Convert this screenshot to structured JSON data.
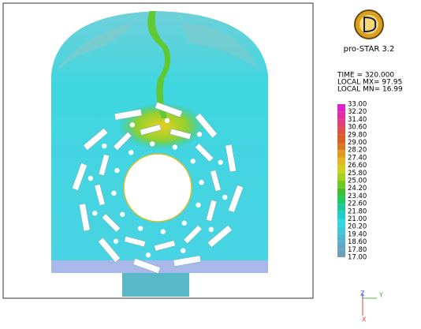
{
  "logo": {
    "title": "pro-STAR 3.2"
  },
  "info": [
    "TIME = 320.000",
    "LOCAL MX= 97.95",
    "LOCAL MN= 16.99"
  ],
  "colorbar": {
    "labels": [
      "33.00",
      "32.20",
      "31.40",
      "30.60",
      "29.80",
      "29.00",
      "28.20",
      "27.40",
      "26.60",
      "25.80",
      "25.00",
      "24.20",
      "23.40",
      "22.60",
      "21.80",
      "21.00",
      "20.20",
      "19.40",
      "18.60",
      "17.80",
      "17.00"
    ]
  },
  "axes": {
    "labels": [
      "Z",
      "Y",
      "X"
    ]
  }
}
